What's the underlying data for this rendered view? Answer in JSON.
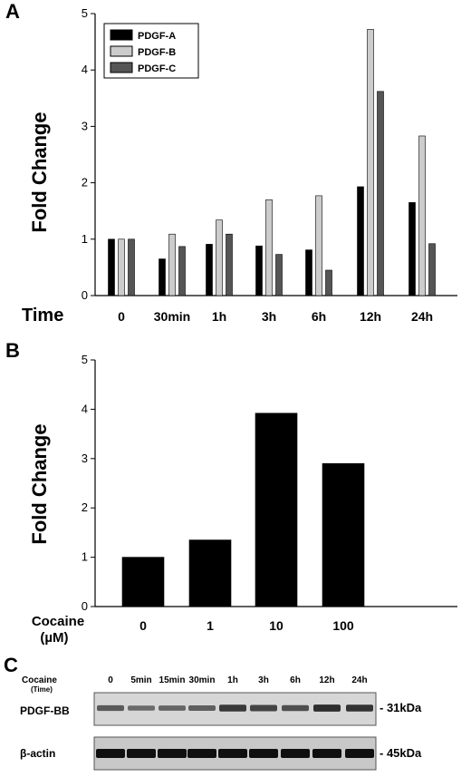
{
  "panels": {
    "a": "A",
    "b": "B",
    "c": "C"
  },
  "chart_data": [
    {
      "type": "bar",
      "panel": "A",
      "ylabel": "Fold Change",
      "xlabel": "Time",
      "ylim": [
        0,
        5
      ],
      "yticks": [
        0,
        1,
        2,
        3,
        4,
        5
      ],
      "categories": [
        "0",
        "30min",
        "1h",
        "3h",
        "6h",
        "12h",
        "24h"
      ],
      "legend_position": "top-left",
      "series": [
        {
          "name": "PDGF-A",
          "color": "#000000",
          "values": [
            1.0,
            0.65,
            0.91,
            0.88,
            0.81,
            1.93,
            1.65
          ]
        },
        {
          "name": "PDGF-B",
          "color": "#cccccc",
          "values": [
            1.0,
            1.09,
            1.34,
            1.7,
            1.77,
            4.72,
            2.83
          ]
        },
        {
          "name": "PDGF-C",
          "color": "#555555",
          "values": [
            1.0,
            0.87,
            1.09,
            0.73,
            0.45,
            3.62,
            0.92
          ]
        }
      ]
    },
    {
      "type": "bar",
      "panel": "B",
      "ylabel": "Fold Change",
      "xlabel": "Cocaine",
      "xlabel_unit": "(µM)",
      "ylim": [
        0,
        5
      ],
      "yticks": [
        0,
        1,
        2,
        3,
        4,
        5
      ],
      "categories": [
        "0",
        "1",
        "10",
        "100"
      ],
      "values": [
        1.0,
        1.35,
        3.92,
        2.9
      ],
      "color": "#000000"
    }
  ],
  "blot": {
    "header_label": "Cocaine",
    "header_sublabel": "(Time)",
    "lanes": [
      "0",
      "5min",
      "15min",
      "30min",
      "1h",
      "3h",
      "6h",
      "12h",
      "24h"
    ],
    "pdgf_intensity": [
      0.55,
      0.4,
      0.45,
      0.5,
      0.85,
      0.75,
      0.65,
      0.95,
      0.9
    ],
    "actin_intensity": [
      1,
      1,
      1,
      1,
      1,
      1,
      1,
      1,
      1
    ],
    "rows": [
      {
        "label": "PDGF-BB",
        "size": "- 31kDa"
      },
      {
        "label": "β-actin",
        "size": "- 45kDa"
      }
    ]
  }
}
